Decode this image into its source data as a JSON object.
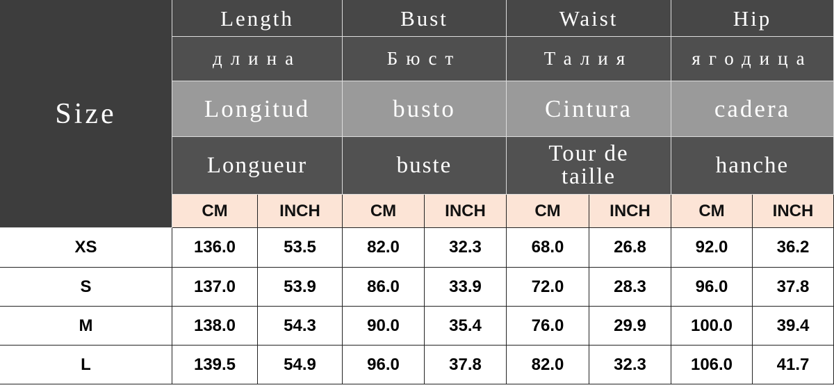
{
  "header": {
    "size_label": "Size",
    "groups": [
      {
        "english": "Length",
        "russian": "длина",
        "spanish": "Longitud",
        "french": "Longueur"
      },
      {
        "english": "Bust",
        "russian": "Бюст",
        "spanish": "busto",
        "french": "buste"
      },
      {
        "english": "Waist",
        "russian": "Талия",
        "spanish": "Cintura",
        "french": "Tour de taille"
      },
      {
        "english": "Hip",
        "russian": "ягодица",
        "spanish": "cadera",
        "french": "hanche"
      }
    ],
    "units": [
      "CM",
      "INCH",
      "CM",
      "INCH",
      "CM",
      "INCH",
      "CM",
      "INCH"
    ]
  },
  "table": {
    "rows": [
      {
        "size": "XS",
        "values": [
          "136.0",
          "53.5",
          "82.0",
          "32.3",
          "68.0",
          "26.8",
          "92.0",
          "36.2"
        ]
      },
      {
        "size": "S",
        "values": [
          "137.0",
          "53.9",
          "86.0",
          "33.9",
          "72.0",
          "28.3",
          "96.0",
          "37.8"
        ]
      },
      {
        "size": "M",
        "values": [
          "138.0",
          "54.3",
          "90.0",
          "35.4",
          "76.0",
          "29.9",
          "100.0",
          "39.4"
        ]
      },
      {
        "size": "L",
        "values": [
          "139.5",
          "54.9",
          "96.0",
          "37.8",
          "82.0",
          "32.3",
          "106.0",
          "41.7"
        ]
      }
    ]
  }
}
